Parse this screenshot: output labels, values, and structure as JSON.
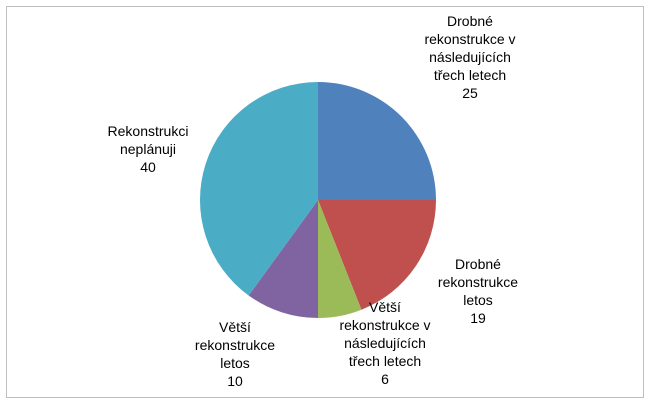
{
  "chart_data": {
    "type": "pie",
    "categories": [
      "Drobné rekonstrukce v následujících třech letech",
      "Drobné rekonstrukce letos",
      "Větší rekonstrukce v následujících třech letech",
      "Větší rekonstrukce letos",
      "Rekonstrukci neplánuji"
    ],
    "values": [
      25,
      19,
      6,
      10,
      40
    ],
    "colors": [
      "#4f81bd",
      "#c0504d",
      "#9bbb59",
      "#8064a2",
      "#4bacc6"
    ]
  }
}
